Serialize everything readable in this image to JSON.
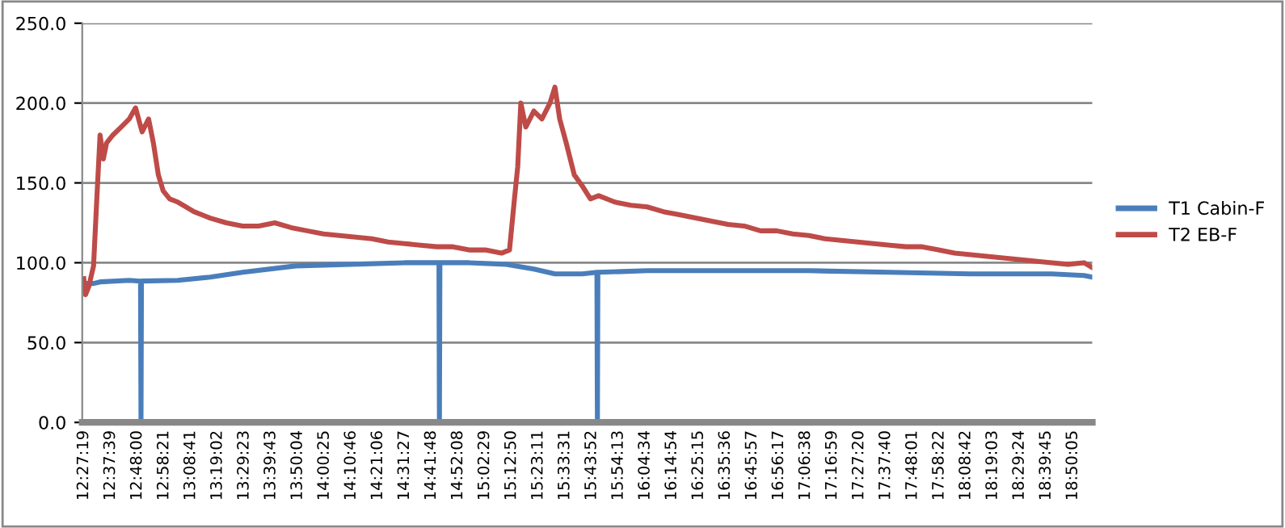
{
  "chart_data": {
    "type": "line",
    "xlim": [
      12.445,
      18.96
    ],
    "xticks": [
      {
        "value": 12.45528,
        "label": "12:27:19"
      },
      {
        "value": 12.6275,
        "label": "12:37:39"
      },
      {
        "value": 12.8,
        "label": "12:48:00"
      },
      {
        "value": 12.9725,
        "label": "12:58:21"
      },
      {
        "value": 13.14472,
        "label": "13:08:41"
      },
      {
        "value": 13.31722,
        "label": "13:19:02"
      },
      {
        "value": 13.48972,
        "label": "13:29:23"
      },
      {
        "value": 13.66194,
        "label": "13:39:43"
      },
      {
        "value": 13.83444,
        "label": "13:50:04"
      },
      {
        "value": 14.00694,
        "label": "14:00:25"
      },
      {
        "value": 14.17944,
        "label": "14:10:46"
      },
      {
        "value": 14.35167,
        "label": "14:21:06"
      },
      {
        "value": 14.52417,
        "label": "14:31:27"
      },
      {
        "value": 14.69667,
        "label": "14:41:48"
      },
      {
        "value": 14.86889,
        "label": "14:52:08"
      },
      {
        "value": 15.04139,
        "label": "15:02:29"
      },
      {
        "value": 15.21389,
        "label": "15:12:50"
      },
      {
        "value": 15.38639,
        "label": "15:23:11"
      },
      {
        "value": 15.55861,
        "label": "15:33:31"
      },
      {
        "value": 15.73111,
        "label": "15:43:52"
      },
      {
        "value": 15.90361,
        "label": "15:54:13"
      },
      {
        "value": 16.07611,
        "label": "16:04:34"
      },
      {
        "value": 16.24833,
        "label": "16:14:54"
      },
      {
        "value": 16.42083,
        "label": "16:25:15"
      },
      {
        "value": 16.59333,
        "label": "16:35:36"
      },
      {
        "value": 16.76583,
        "label": "16:45:57"
      },
      {
        "value": 16.93806,
        "label": "16:56:17"
      },
      {
        "value": 17.11056,
        "label": "17:06:38"
      },
      {
        "value": 17.28306,
        "label": "17:16:59"
      },
      {
        "value": 17.45556,
        "label": "17:27:20"
      },
      {
        "value": 17.62778,
        "label": "17:37:40"
      },
      {
        "value": 17.80028,
        "label": "17:48:01"
      },
      {
        "value": 17.97278,
        "label": "17:58:22"
      },
      {
        "value": 18.145,
        "label": "18:08:42"
      },
      {
        "value": 18.3175,
        "label": "18:19:03"
      },
      {
        "value": 18.49,
        "label": "18:29:24"
      },
      {
        "value": 18.6625,
        "label": "18:39:45"
      },
      {
        "value": 18.83472,
        "label": "18:50:05"
      }
    ],
    "ylim": [
      0,
      250
    ],
    "yticks": [
      {
        "value": 0,
        "label": "0.0"
      },
      {
        "value": 50,
        "label": "50.0"
      },
      {
        "value": 100,
        "label": "100.0"
      },
      {
        "value": 150,
        "label": "150.0"
      },
      {
        "value": 200,
        "label": "200.0"
      },
      {
        "value": 250,
        "label": "250.0"
      }
    ],
    "grid": "y",
    "legend": "right",
    "marker": "none",
    "line_style": "solid",
    "series": [
      {
        "name": "T1 Cabin-F",
        "color": "#4a7ebb",
        "x": [
          12.455,
          12.518,
          12.56,
          12.748,
          12.821,
          12.824,
          12.827,
          13.061,
          13.27,
          13.479,
          13.823,
          14.178,
          14.523,
          14.746,
          14.749,
          14.752,
          14.94,
          15.181,
          15.358,
          15.494,
          15.671,
          15.765,
          15.768,
          15.771,
          16.089,
          16.611,
          17.133,
          17.655,
          18.177,
          18.699,
          18.907,
          18.96
        ],
        "values": [
          87,
          87,
          88,
          89,
          88.5,
          0,
          88.5,
          89,
          91,
          94,
          98,
          99,
          100,
          100,
          0,
          100,
          100,
          99,
          96,
          93,
          93,
          94,
          0,
          94,
          95,
          95,
          95,
          94,
          93,
          93,
          92,
          91
        ]
      },
      {
        "name": "T2 EB-F",
        "color": "#be4b48",
        "x": [
          12.455,
          12.466,
          12.487,
          12.518,
          12.539,
          12.56,
          12.581,
          12.602,
          12.643,
          12.696,
          12.748,
          12.789,
          12.831,
          12.873,
          12.904,
          12.936,
          12.967,
          13.009,
          13.061,
          13.113,
          13.165,
          13.27,
          13.374,
          13.479,
          13.583,
          13.687,
          13.792,
          13.896,
          14.001,
          14.105,
          14.21,
          14.314,
          14.418,
          14.523,
          14.627,
          14.732,
          14.836,
          14.94,
          15.045,
          15.149,
          15.201,
          15.233,
          15.254,
          15.274,
          15.306,
          15.358,
          15.41,
          15.462,
          15.494,
          15.525,
          15.567,
          15.619,
          15.671,
          15.723,
          15.776,
          15.88,
          15.984,
          16.089,
          16.193,
          16.298,
          16.402,
          16.506,
          16.611,
          16.715,
          16.82,
          16.924,
          17.028,
          17.133,
          17.237,
          17.341,
          17.446,
          17.55,
          17.655,
          17.759,
          17.863,
          17.968,
          18.072,
          18.177,
          18.281,
          18.385,
          18.49,
          18.594,
          18.699,
          18.803,
          18.907,
          18.96
        ],
        "values": [
          90,
          80,
          85,
          98,
          140,
          180,
          165,
          175,
          180,
          185,
          190,
          197,
          182,
          190,
          175,
          155,
          145,
          140,
          138,
          135,
          132,
          128,
          125,
          123,
          123,
          125,
          122,
          120,
          118,
          117,
          116,
          115,
          113,
          112,
          111,
          110,
          110,
          108,
          108,
          106,
          108,
          140,
          160,
          200,
          185,
          195,
          190,
          200,
          210,
          190,
          175,
          155,
          148,
          140,
          142,
          138,
          136,
          135,
          132,
          130,
          128,
          126,
          124,
          123,
          120,
          120,
          118,
          117,
          115,
          114,
          113,
          112,
          111,
          110,
          110,
          108,
          106,
          105,
          104,
          103,
          102,
          101,
          100,
          99,
          100,
          97
        ]
      }
    ]
  }
}
